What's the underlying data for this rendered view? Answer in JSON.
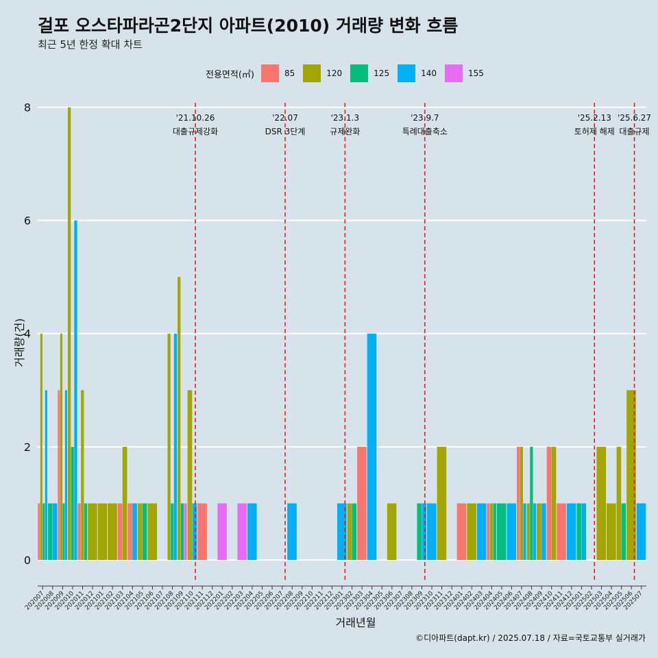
{
  "title": "걸포 오스타파라곤2단지 아파트(2010) 거래량 변화 흐름",
  "subtitle": "최근 5년 한정 확대 차트",
  "caption": "©디아파트(dapt.kr) / 2025.07.18 / 자료=국토교통부 실거래가",
  "legend": {
    "title": "전용면적(㎡)",
    "items": [
      {
        "label": "85",
        "color": "#f8766d"
      },
      {
        "label": "120",
        "color": "#a3a500"
      },
      {
        "label": "125",
        "color": "#00bf7d"
      },
      {
        "label": "140",
        "color": "#00b0f6"
      },
      {
        "label": "155",
        "color": "#e76bf3"
      }
    ]
  },
  "chart_data": {
    "type": "bar",
    "title": "걸포 오스타파라곤2단지 아파트(2010) 거래량 변화 흐름",
    "xlabel": "거래년월",
    "ylabel": "거래량(건)",
    "ylim": [
      -0.4,
      8.2
    ],
    "yticks": [
      0,
      2,
      4,
      6,
      8
    ],
    "categories": [
      "202007",
      "202008",
      "202009",
      "202010",
      "202011",
      "202012",
      "202101",
      "202102",
      "202103",
      "202104",
      "202105",
      "202106",
      "202107",
      "202108",
      "202109",
      "202110",
      "202111",
      "202112",
      "202201",
      "202202",
      "202203",
      "202204",
      "202205",
      "202206",
      "202207",
      "202208",
      "202209",
      "202210",
      "202211",
      "202212",
      "202301",
      "202302",
      "202303",
      "202304",
      "202305",
      "202306",
      "202307",
      "202308",
      "202309",
      "202310",
      "202311",
      "202312",
      "202401",
      "202402",
      "202403",
      "202404",
      "202405",
      "202406",
      "202407",
      "202408",
      "202409",
      "202410",
      "202411",
      "202412",
      "202501",
      "202502",
      "202503",
      "202504",
      "202505",
      "202506",
      "202507"
    ],
    "series": [
      {
        "name": "85",
        "values": [
          1,
          0,
          3,
          0,
          1,
          0,
          0,
          0,
          1,
          1,
          0,
          0,
          0,
          0,
          0,
          0,
          1,
          0,
          0,
          0,
          0,
          0,
          0,
          0,
          0,
          0,
          0,
          0,
          0,
          0,
          0,
          0,
          2,
          0,
          0,
          0,
          0,
          0,
          0,
          0,
          0,
          0,
          1,
          0,
          0,
          1,
          0,
          0,
          2,
          0,
          0,
          2,
          1,
          0,
          0,
          0,
          0,
          0,
          0,
          0,
          0
        ]
      },
      {
        "name": "120",
        "values": [
          4,
          0,
          4,
          8,
          3,
          1,
          1,
          1,
          2,
          0,
          1,
          1,
          0,
          4,
          5,
          3,
          0,
          0,
          0,
          0,
          0,
          0,
          0,
          0,
          0,
          0,
          0,
          0,
          0,
          0,
          0,
          1,
          0,
          0,
          0,
          1,
          0,
          0,
          0,
          0,
          2,
          0,
          0,
          1,
          0,
          1,
          0,
          0,
          2,
          1,
          1,
          2,
          0,
          0,
          0,
          0,
          2,
          1,
          2,
          3,
          0
        ]
      },
      {
        "name": "125",
        "values": [
          1,
          1,
          1,
          2,
          1,
          0,
          0,
          0,
          0,
          0,
          1,
          0,
          0,
          1,
          1,
          0,
          0,
          0,
          0,
          0,
          0,
          0,
          0,
          0,
          0,
          0,
          0,
          0,
          0,
          0,
          0,
          1,
          0,
          0,
          0,
          0,
          0,
          0,
          1,
          0,
          0,
          0,
          0,
          0,
          0,
          1,
          1,
          0,
          0,
          2,
          0,
          0,
          0,
          0,
          1,
          0,
          0,
          0,
          1,
          0,
          0
        ]
      },
      {
        "name": "140",
        "values": [
          3,
          1,
          3,
          6,
          0,
          0,
          0,
          0,
          0,
          1,
          0,
          0,
          0,
          4,
          0,
          1,
          0,
          0,
          0,
          0,
          0,
          1,
          0,
          0,
          0,
          1,
          0,
          0,
          0,
          0,
          1,
          0,
          0,
          4,
          0,
          0,
          0,
          0,
          1,
          1,
          0,
          0,
          0,
          0,
          1,
          0,
          0,
          1,
          1,
          1,
          1,
          0,
          0,
          1,
          1,
          0,
          0,
          0,
          0,
          0,
          1
        ]
      },
      {
        "name": "155",
        "values": [
          0,
          0,
          0,
          0,
          0,
          0,
          0,
          0,
          0,
          0,
          0,
          0,
          0,
          0,
          1,
          0,
          0,
          0,
          1,
          0,
          1,
          0,
          0,
          0,
          0,
          0,
          0,
          0,
          0,
          0,
          0,
          0,
          0,
          0,
          0,
          0,
          0,
          0,
          0,
          0,
          0,
          0,
          0,
          0,
          0,
          0,
          0,
          0,
          0,
          0,
          0,
          0,
          0,
          0,
          0,
          0,
          0,
          0,
          0,
          0,
          0
        ]
      }
    ],
    "events": [
      {
        "date": "'21.10.26",
        "label": "대출규제강화",
        "at": 15.3
      },
      {
        "date": "'22.07",
        "label": "DSR 3단계",
        "at": 24.3
      },
      {
        "date": "'23.1.3",
        "label": "규제완화",
        "at": 30.3
      },
      {
        "date": "'23.9.7",
        "label": "특례대출축소",
        "at": 38.3
      },
      {
        "date": "'25.2.13",
        "label": "토허제 해제",
        "at": 55.3
      },
      {
        "date": "'25.6.27",
        "label": "대출규제",
        "at": 59.3
      }
    ]
  }
}
